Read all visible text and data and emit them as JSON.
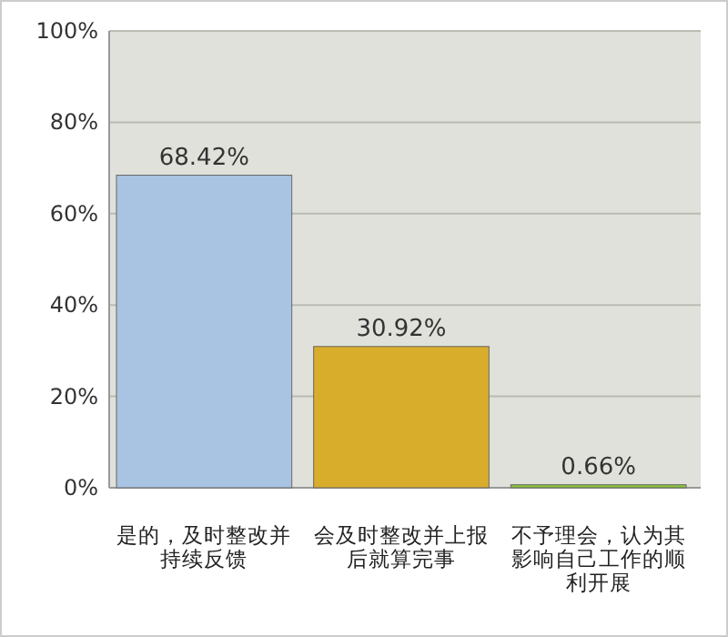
{
  "chart_data": {
    "type": "bar",
    "categories": [
      "是的，及时整改并持续反馈",
      "会及时整改并上报后就算完事",
      "不予理会，认为其影响自己工作的顺利开展"
    ],
    "values": [
      68.42,
      30.92,
      0.66
    ],
    "colors": [
      "#a9c4e2",
      "#d9ad2c",
      "#8cc43c"
    ],
    "value_labels": [
      "68.42%",
      "30.92%",
      "0.66%"
    ],
    "ylim": [
      0,
      100
    ],
    "yticks": [
      {
        "value": 0,
        "label": "0%"
      },
      {
        "value": 20,
        "label": "20%"
      },
      {
        "value": 40,
        "label": "40%"
      },
      {
        "value": 60,
        "label": "60%"
      },
      {
        "value": 80,
        "label": "80%"
      },
      {
        "value": 100,
        "label": "100%"
      }
    ],
    "grid": "y"
  }
}
